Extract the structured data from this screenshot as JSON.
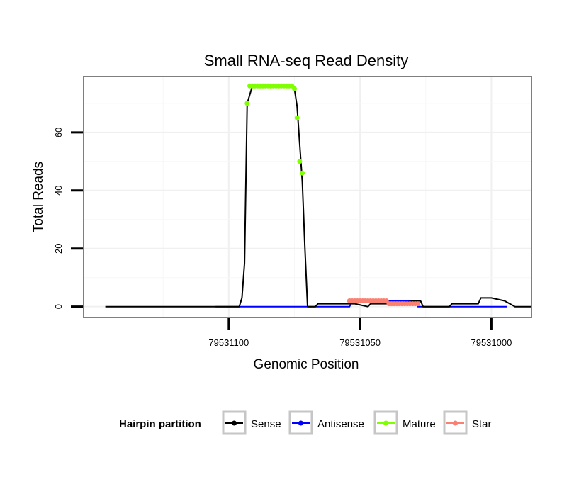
{
  "chart_data": {
    "type": "line",
    "title": "Small RNA-seq Read Density",
    "xlabel": "Genomic Position",
    "ylabel": "Total Reads",
    "xlim": [
      79531155,
      79530985
    ],
    "x_reversed": true,
    "ylim": [
      -3.5,
      79
    ],
    "x_ticks": [
      79531100,
      79531050,
      79531000
    ],
    "x_tick_labels": [
      "79531100",
      "79531050",
      "79531000"
    ],
    "y_ticks": [
      0,
      20,
      40,
      60
    ],
    "y_tick_labels": [
      "0",
      "20",
      "40",
      "60"
    ],
    "grid": true,
    "legend": {
      "title": "Hairpin partition",
      "placement": "bottom",
      "entries": [
        {
          "name": "Sense",
          "color": "#000000"
        },
        {
          "name": "Antisense",
          "color": "#0000ff"
        },
        {
          "name": "Mature",
          "color": "#7fff00"
        },
        {
          "name": "Star",
          "color": "#fa8072"
        }
      ]
    },
    "series": [
      {
        "name": "Sense",
        "color": "#000000",
        "style": "line",
        "x": [
          79531147,
          79531105,
          79531096,
          79531095,
          79531094,
          79531093,
          79531091,
          79531089,
          79531086,
          79531081,
          79531076,
          79531075,
          79531074,
          79531073,
          79531072,
          79531071,
          79531070,
          79531069,
          79531068,
          79531067,
          79531066,
          79531062,
          79531052,
          79531047,
          79531046,
          79531037,
          79531029,
          79531027,
          79531026,
          79531016,
          79531015,
          79531005,
          79531004,
          79531000,
          79530995,
          79530991,
          79530986,
          79530985
        ],
        "y": [
          0,
          0,
          0,
          3,
          15,
          70,
          76,
          76,
          76,
          76,
          76,
          75,
          69,
          56,
          43,
          20,
          0,
          0,
          0,
          0,
          1,
          1,
          1,
          0,
          1,
          1,
          2,
          2,
          0,
          0,
          1,
          1,
          3,
          3,
          2,
          0,
          0,
          0
        ]
      },
      {
        "name": "Antisense",
        "color": "#0000ff",
        "style": "line",
        "x": [
          79531105,
          79531062,
          79531054,
          79531053,
          79531035,
          79531034,
          79531029,
          79531028,
          79530994
        ],
        "y": [
          0,
          0,
          0,
          2,
          2,
          2,
          2,
          0,
          0
        ]
      },
      {
        "name": "Mature",
        "color": "#7fff00",
        "style": "points",
        "x": [
          79531093,
          79531092,
          79531091,
          79531090,
          79531089,
          79531088,
          79531087,
          79531086,
          79531085,
          79531084,
          79531083,
          79531082,
          79531081,
          79531080,
          79531079,
          79531078,
          79531077,
          79531076,
          79531075,
          79531074,
          79531073,
          79531072
        ],
        "y": [
          70,
          76,
          76,
          76,
          76,
          76,
          76,
          76,
          76,
          76,
          76,
          76,
          76,
          76,
          76,
          76,
          76,
          76,
          75,
          65,
          50,
          46
        ]
      },
      {
        "name": "Star",
        "color": "#fa8072",
        "style": "points",
        "x": [
          79531054,
          79531053,
          79531052,
          79531051,
          79531050,
          79531049,
          79531048,
          79531047,
          79531046,
          79531045,
          79531044,
          79531043,
          79531042,
          79531041,
          79531040,
          79531039,
          79531038,
          79531037,
          79531036,
          79531035,
          79531034,
          79531033,
          79531032,
          79531031,
          79531030,
          79531029,
          79531028
        ],
        "y": [
          2,
          2,
          2,
          2,
          2,
          2,
          2,
          2,
          2,
          2,
          2,
          2,
          2,
          2,
          2,
          1,
          1,
          1,
          1,
          1,
          1,
          1,
          1,
          1,
          1,
          1,
          1
        ]
      }
    ]
  }
}
